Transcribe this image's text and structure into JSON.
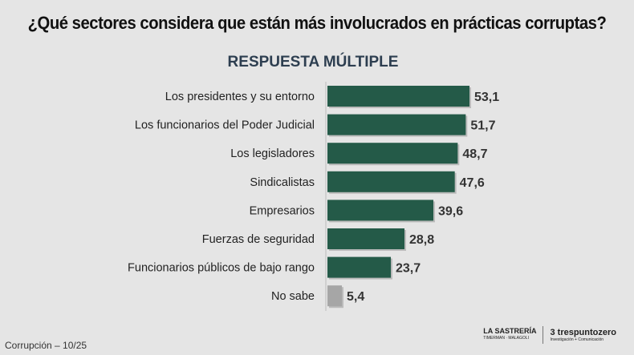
{
  "chart_data": {
    "type": "bar",
    "orientation": "horizontal",
    "title": "¿Qué sectores considera que están más involucrados en prácticas corruptas?",
    "subtitle": "RESPUESTA MÚLTIPLE",
    "categories": [
      "Los presidentes y su entorno",
      "Los funcionarios del Poder Judicial",
      "Los legisladores",
      "Sindicalistas",
      "Empresarios",
      "Fuerzas de seguridad",
      "Funcionarios públicos de bajo rango",
      "No sabe"
    ],
    "values": [
      53.1,
      51.7,
      48.7,
      47.6,
      39.6,
      28.8,
      23.7,
      5.4
    ],
    "labels": [
      "53,1",
      "51,7",
      "48,7",
      "47,6",
      "39,6",
      "28,8",
      "23,7",
      "5,4"
    ],
    "colors": [
      "#245a48",
      "#245a48",
      "#245a48",
      "#245a48",
      "#245a48",
      "#245a48",
      "#245a48",
      "#a6a6a6"
    ],
    "xlim": [
      0,
      60
    ],
    "grid": false
  },
  "footer": "Corrupción – 10/25",
  "logos": {
    "sastreria": "LA SASTRERÍA",
    "sastreria_sub": "TIMERMAN · MALAGOLI",
    "tres": "trespuntozero",
    "tres_sub": "Investigación + Comunicación"
  }
}
